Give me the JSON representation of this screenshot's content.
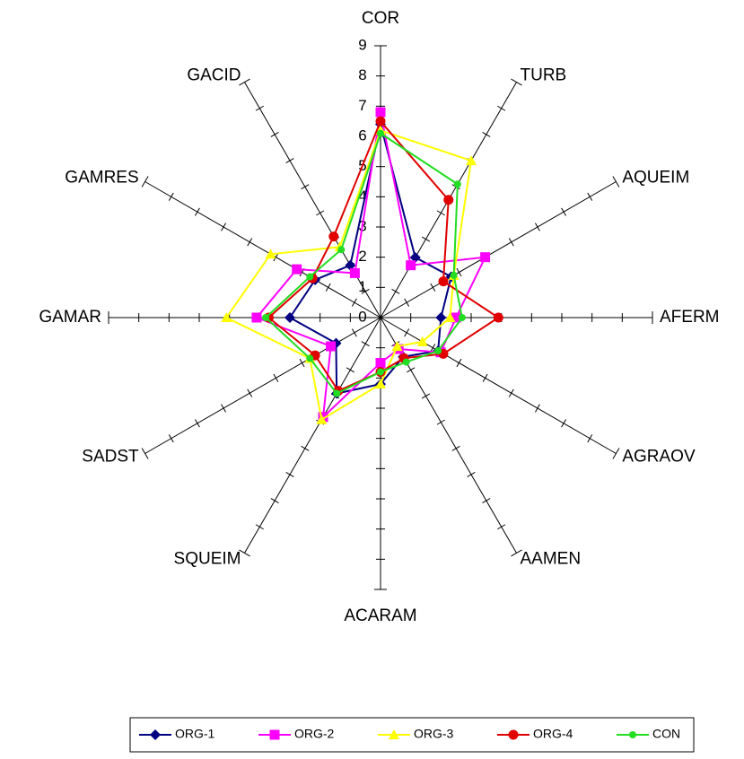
{
  "chart_data": {
    "type": "radar",
    "categories": [
      "COR",
      "TURB",
      "AQUEIM",
      "AFERM",
      "AGRAOV",
      "AAMEN",
      "ACARAM",
      "SQUEIM",
      "SADST",
      "GAMAR",
      "GAMRES",
      "GACID"
    ],
    "rlim": [
      0,
      9
    ],
    "rticks": [
      0,
      1,
      2,
      3,
      4,
      5,
      6,
      7,
      8,
      9
    ],
    "legend": "bottom",
    "series": [
      {
        "name": "ORG-1",
        "color": "#000080",
        "marker": "diamond",
        "values": [
          6.4,
          2.3,
          2.7,
          2.0,
          2.2,
          1.5,
          2.2,
          2.9,
          1.7,
          3.0,
          2.5,
          2.0
        ]
      },
      {
        "name": "ORG-2",
        "color": "#ff00ff",
        "marker": "square",
        "values": [
          6.8,
          2.0,
          4.0,
          2.5,
          2.3,
          1.2,
          1.5,
          3.8,
          1.9,
          4.1,
          3.2,
          1.7
        ]
      },
      {
        "name": "ORG-3",
        "color": "#ffff00",
        "marker": "triangle",
        "values": [
          6.2,
          6.0,
          2.8,
          2.3,
          1.6,
          1.1,
          2.2,
          3.9,
          2.7,
          5.1,
          4.2,
          2.7
        ]
      },
      {
        "name": "ORG-4",
        "color": "#e00000",
        "marker": "circle",
        "values": [
          6.5,
          4.5,
          2.4,
          3.9,
          2.4,
          1.55,
          1.8,
          2.8,
          2.5,
          3.7,
          2.6,
          3.1
        ]
      },
      {
        "name": "CON",
        "color": "#22dd22",
        "marker": "dot",
        "values": [
          6.1,
          5.1,
          2.8,
          2.7,
          2.2,
          1.7,
          1.8,
          2.9,
          2.7,
          3.8,
          2.7,
          2.6
        ]
      }
    ]
  }
}
